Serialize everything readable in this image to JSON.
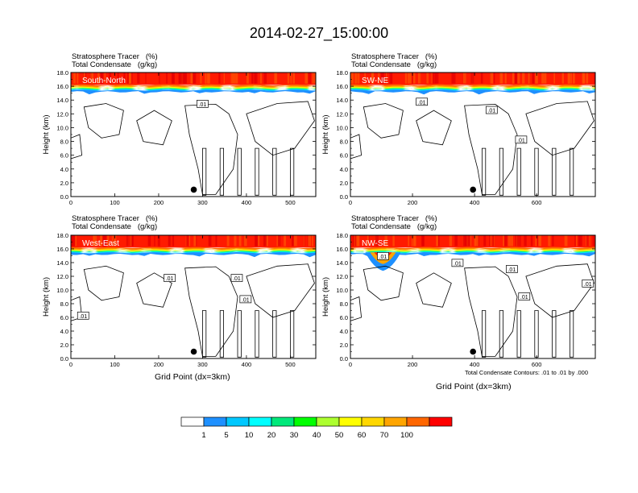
{
  "figure": {
    "title": "2014-02-27_15:00:00",
    "contour_note": "Total Condensate Contours: .01 to .01 by .000",
    "x_axis_label": "Grid Point (dx=3km)",
    "y_axis_label": "Height (km)"
  },
  "colors": {
    "levels": [
      "#ffffff",
      "#1e90ff",
      "#00bfff",
      "#00ffff",
      "#00e87a",
      "#00ff00",
      "#adff2f",
      "#ffff00",
      "#ffd700",
      "#ffa500",
      "#ff6600",
      "#ff3300",
      "#ff0000"
    ],
    "strat_band": "#ff1a00",
    "strat_band_alt": "#ff4d00",
    "contour": "#000000",
    "marker": "#000000"
  },
  "chart_data": [
    {
      "type": "contour",
      "panel": "South-North",
      "label": "South-North",
      "header_line1": "Stratosphere Tracer   (%)",
      "header_line2": "Total Condensate   (g/kg)",
      "xlim": [
        0,
        558
      ],
      "ylim": [
        0,
        18
      ],
      "xticks": [
        0,
        100,
        200,
        300,
        400,
        500
      ],
      "yticks": [
        "0.0",
        "2.0",
        "4.0",
        "6.0",
        "8.0",
        "10.0",
        "12.0",
        "14.0",
        "16.0",
        "18.0"
      ],
      "tracer_top_km": 18.0,
      "tracer_base_km": 15.4,
      "marker_x": 280,
      "marker_y_km": 1.0,
      "contour_labels": [
        {
          "x": 300,
          "y_km": 13.4,
          "text": ".01"
        }
      ],
      "show_xlabel": false
    },
    {
      "type": "contour",
      "panel": "SW-NE",
      "label": "SW-NE",
      "header_line1": "Stratosphere Tracer   (%)",
      "header_line2": "Total Condensate   (g/kg)",
      "xlim": [
        0,
        789
      ],
      "ylim": [
        0,
        18
      ],
      "xticks": [
        0,
        200,
        400,
        600
      ],
      "yticks": [
        "0.0",
        "2.0",
        "4.0",
        "6.0",
        "8.0",
        "10.0",
        "12.0",
        "14.0",
        "16.0",
        "18.0"
      ],
      "tracer_top_km": 18.0,
      "tracer_base_km": 15.4,
      "marker_x": 395,
      "marker_y_km": 1.0,
      "contour_labels": [
        {
          "x": 230,
          "y_km": 13.7,
          "text": ".01"
        },
        {
          "x": 455,
          "y_km": 12.5,
          "text": ".01"
        },
        {
          "x": 550,
          "y_km": 8.2,
          "text": ".01"
        }
      ],
      "show_xlabel": false
    },
    {
      "type": "contour",
      "panel": "West-East",
      "label": "West-East",
      "header_line1": "Stratosphere Tracer   (%)",
      "header_line2": "Total Condensate   (g/kg)",
      "xlim": [
        0,
        558
      ],
      "ylim": [
        0,
        18
      ],
      "xticks": [
        0,
        100,
        200,
        300,
        400,
        500
      ],
      "yticks": [
        "0.0",
        "2.0",
        "4.0",
        "6.0",
        "8.0",
        "10.0",
        "12.0",
        "14.0",
        "16.0",
        "18.0"
      ],
      "tracer_top_km": 18.0,
      "tracer_base_km": 15.4,
      "marker_x": 280,
      "marker_y_km": 1.0,
      "contour_labels": [
        {
          "x": 225,
          "y_km": 11.7,
          "text": ".01"
        },
        {
          "x": 378,
          "y_km": 11.7,
          "text": ".01"
        },
        {
          "x": 398,
          "y_km": 8.6,
          "text": ".01"
        },
        {
          "x": 28,
          "y_km": 6.2,
          "text": ".01"
        }
      ],
      "show_xlabel": true
    },
    {
      "type": "contour",
      "panel": "NW-SE",
      "label": "NW-SE",
      "header_line1": "Stratosphere Tracer   (%)",
      "header_line2": "Total Condensate   (g/kg)",
      "xlim": [
        0,
        789
      ],
      "ylim": [
        0,
        18
      ],
      "xticks": [
        0,
        200,
        400,
        600
      ],
      "yticks": [
        "0.0",
        "2.0",
        "4.0",
        "6.0",
        "8.0",
        "10.0",
        "12.0",
        "14.0",
        "16.0",
        "18.0"
      ],
      "tracer_top_km": 18.0,
      "tracer_base_km": 15.4,
      "tracer_intrusion": {
        "x_center": 105,
        "y_km": 14.0
      },
      "marker_x": 395,
      "marker_y_km": 1.0,
      "contour_labels": [
        {
          "x": 105,
          "y_km": 14.9,
          "text": ".01"
        },
        {
          "x": 345,
          "y_km": 13.9,
          "text": ".01"
        },
        {
          "x": 520,
          "y_km": 13.0,
          "text": ".01"
        },
        {
          "x": 765,
          "y_km": 10.9,
          "text": ".01"
        },
        {
          "x": 560,
          "y_km": 9.0,
          "text": ".01"
        }
      ],
      "show_xlabel": true
    }
  ],
  "colorbar": {
    "ticks": [
      "1",
      "5",
      "10",
      "20",
      "30",
      "40",
      "50",
      "60",
      "70",
      "100"
    ],
    "colors": [
      "#ffffff",
      "#1e90ff",
      "#00c8ff",
      "#00ffff",
      "#00e87a",
      "#00ff00",
      "#adff2f",
      "#ffff00",
      "#ffd700",
      "#ffa500",
      "#ff6600",
      "#ff0000"
    ]
  }
}
